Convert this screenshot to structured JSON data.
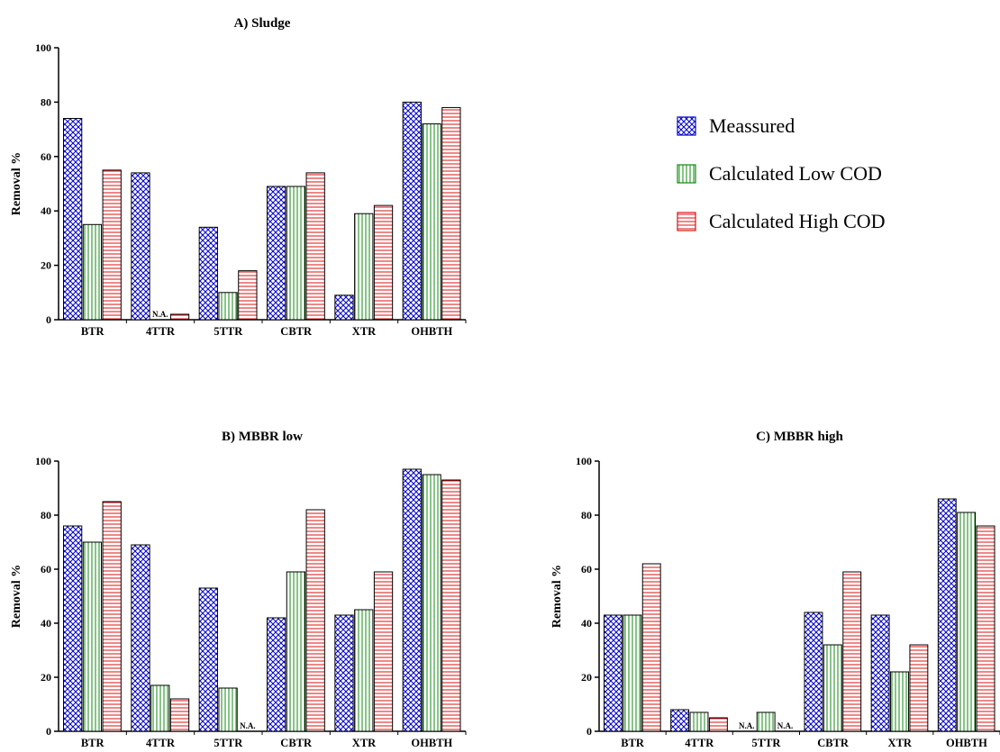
{
  "legend": {
    "items": [
      {
        "label": "Meassured",
        "color": "#0000cc",
        "pattern": "crosshatch"
      },
      {
        "label": "Calculated Low COD",
        "color": "#118811",
        "pattern": "vertical"
      },
      {
        "label": "Calculated High COD",
        "color": "#dd1111",
        "pattern": "horizontal"
      }
    ]
  },
  "na_text": "N.A.",
  "chart_data": [
    {
      "type": "bar",
      "title": "A) Sludge",
      "ylabel": "Removal %",
      "ylim": [
        0,
        100
      ],
      "yticks": [
        0,
        20,
        40,
        60,
        80,
        100
      ],
      "categories": [
        "BTR",
        "4TTR",
        "5TTR",
        "CBTR",
        "XTR",
        "OHBTH"
      ],
      "series": [
        {
          "name": "Meassured",
          "values": [
            74,
            54,
            34,
            49,
            9,
            80
          ]
        },
        {
          "name": "Calculated Low COD",
          "values": [
            35,
            null,
            10,
            49,
            39,
            72
          ]
        },
        {
          "name": "Calculated High COD",
          "values": [
            55,
            2,
            18,
            54,
            42,
            78
          ]
        }
      ]
    },
    {
      "type": "bar",
      "title": "B) MBBR low",
      "ylabel": "Removal %",
      "ylim": [
        0,
        100
      ],
      "yticks": [
        0,
        20,
        40,
        60,
        80,
        100
      ],
      "categories": [
        "BTR",
        "4TTR",
        "5TTR",
        "CBTR",
        "XTR",
        "OHBTH"
      ],
      "series": [
        {
          "name": "Meassured",
          "values": [
            76,
            69,
            53,
            42,
            43,
            97
          ]
        },
        {
          "name": "Calculated Low COD",
          "values": [
            70,
            17,
            16,
            59,
            45,
            95
          ]
        },
        {
          "name": "Calculated High COD",
          "values": [
            85,
            12,
            null,
            82,
            59,
            93
          ]
        }
      ]
    },
    {
      "type": "bar",
      "title": "C) MBBR high",
      "ylabel": "Removal %",
      "ylim": [
        0,
        100
      ],
      "yticks": [
        0,
        20,
        40,
        60,
        80,
        100
      ],
      "categories": [
        "BTR",
        "4TTR",
        "5TTR",
        "CBTR",
        "XTR",
        "OHBTH"
      ],
      "series": [
        {
          "name": "Meassured",
          "values": [
            43,
            8,
            null,
            44,
            43,
            86
          ]
        },
        {
          "name": "Calculated Low COD",
          "values": [
            43,
            7,
            7,
            32,
            22,
            81
          ]
        },
        {
          "name": "Calculated High COD",
          "values": [
            62,
            5,
            null,
            59,
            32,
            76
          ]
        }
      ]
    }
  ]
}
